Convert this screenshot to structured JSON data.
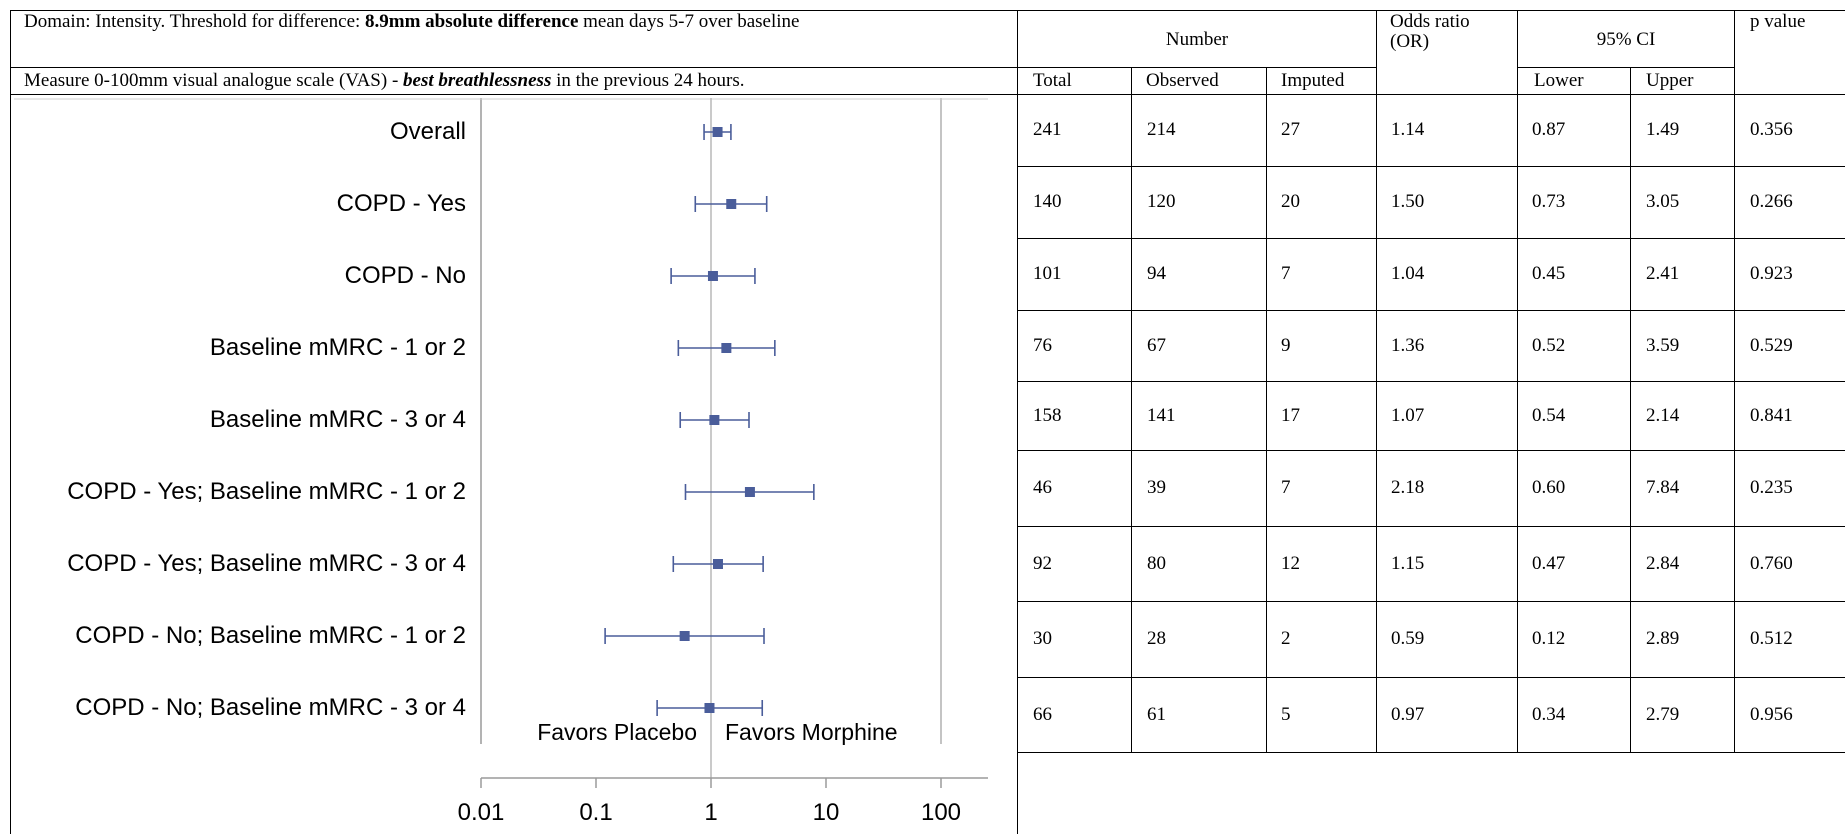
{
  "header": {
    "domain_pre": "Domain: Intensity.  Threshold for difference: ",
    "domain_bold": "8.9mm absolute difference",
    "domain_post": " mean days 5-7 over baseline",
    "measure_pre": "Measure 0-100mm visual analogue scale (VAS) - ",
    "measure_bold": "best breathlessness",
    "measure_post": " in the previous 24 hours."
  },
  "columns": {
    "number": "Number",
    "total": "Total",
    "observed": "Observed",
    "imputed": "Imputed",
    "odds_ratio": "Odds ratio (OR)",
    "ci": "95% CI",
    "lower": "Lower",
    "upper": "Upper",
    "p_value": "p value"
  },
  "rows": [
    {
      "label": "Overall",
      "total": "241",
      "observed": "214",
      "imputed": "27",
      "or": "1.14",
      "lower": "0.87",
      "upper": "1.49",
      "p": "0.356"
    },
    {
      "label": "COPD - Yes",
      "total": "140",
      "observed": "120",
      "imputed": "20",
      "or": "1.50",
      "lower": "0.73",
      "upper": "3.05",
      "p": "0.266"
    },
    {
      "label": "COPD - No",
      "total": "101",
      "observed": "94",
      "imputed": "7",
      "or": "1.04",
      "lower": "0.45",
      "upper": "2.41",
      "p": "0.923"
    },
    {
      "label": "Baseline mMRC - 1 or 2",
      "total": "76",
      "observed": "67",
      "imputed": "9",
      "or": "1.36",
      "lower": "0.52",
      "upper": "3.59",
      "p": "0.529"
    },
    {
      "label": "Baseline mMRC - 3 or 4",
      "total": "158",
      "observed": "141",
      "imputed": "17",
      "or": "1.07",
      "lower": "0.54",
      "upper": "2.14",
      "p": "0.841"
    },
    {
      "label": "COPD - Yes; Baseline mMRC - 1 or 2",
      "total": "46",
      "observed": "39",
      "imputed": "7",
      "or": "2.18",
      "lower": "0.60",
      "upper": "7.84",
      "p": "0.235"
    },
    {
      "label": "COPD - Yes; Baseline mMRC - 3 or 4",
      "total": "92",
      "observed": "80",
      "imputed": "12",
      "or": "1.15",
      "lower": "0.47",
      "upper": "2.84",
      "p": "0.760"
    },
    {
      "label": "COPD - No; Baseline mMRC - 1 or 2",
      "total": "30",
      "observed": "28",
      "imputed": "2",
      "or": "0.59",
      "lower": "0.12",
      "upper": "2.89",
      "p": "0.512"
    },
    {
      "label": "COPD - No; Baseline mMRC - 3 or 4",
      "total": "66",
      "observed": "61",
      "imputed": "5",
      "or": "0.97",
      "lower": "0.34",
      "upper": "2.79",
      "p": "0.956"
    }
  ],
  "chart_data": {
    "type": "scatter",
    "x_scale": "log",
    "xlim": [
      0.01,
      100
    ],
    "x_ticks": [
      "0.01",
      "0.1",
      "1",
      "10",
      "100"
    ],
    "reference_line": 1,
    "annotations": [
      "Favors Placebo",
      "Favors Morphine"
    ],
    "categories": [
      "Overall",
      "COPD - Yes",
      "COPD - No",
      "Baseline mMRC - 1 or 2",
      "Baseline mMRC - 3 or 4",
      "COPD - Yes; Baseline mMRC - 1 or 2",
      "COPD - Yes; Baseline mMRC - 3 or 4",
      "COPD - No; Baseline mMRC - 1 or 2",
      "COPD - No; Baseline mMRC - 3 or 4"
    ],
    "values": [
      1.14,
      1.5,
      1.04,
      1.36,
      1.07,
      2.18,
      1.15,
      0.59,
      0.97
    ],
    "lower": [
      0.87,
      0.73,
      0.45,
      0.52,
      0.54,
      0.6,
      0.47,
      0.12,
      0.34
    ],
    "upper": [
      1.49,
      3.05,
      2.41,
      3.59,
      2.14,
      7.84,
      2.84,
      2.89,
      2.79
    ],
    "colors": {
      "marker": "#4a5d9a",
      "ref_line": "#b8b8b8",
      "axis": "#9a9a9a"
    }
  }
}
